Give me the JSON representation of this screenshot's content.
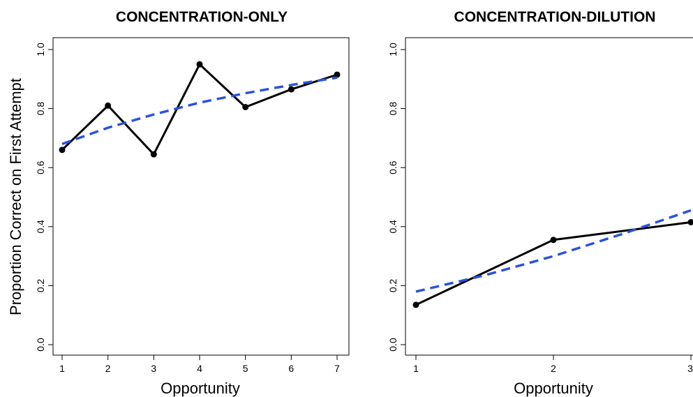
{
  "chart_data": [
    {
      "type": "line",
      "title": "CONCENTRATION-ONLY",
      "xlabel": "Opportunity",
      "ylabel": "Proportion Correct on First Attempt",
      "xlim": [
        1,
        7
      ],
      "ylim": [
        0,
        1
      ],
      "x_ticks": [
        "1",
        "2",
        "3",
        "4",
        "5",
        "6",
        "7"
      ],
      "y_ticks": [
        "0.0",
        "0.2",
        "0.4",
        "0.6",
        "0.8",
        "1.0"
      ],
      "grid": false,
      "legend": "none",
      "series": [
        {
          "style": "solid-with-points",
          "color": "#000000",
          "x": [
            1,
            2,
            3,
            4,
            5,
            6,
            7
          ],
          "y": [
            0.66,
            0.81,
            0.645,
            0.95,
            0.805,
            0.865,
            0.915
          ]
        },
        {
          "style": "dashed",
          "color": "#2a52e0",
          "x": [
            1,
            2,
            3,
            4,
            5,
            6,
            7
          ],
          "y": [
            0.68,
            0.735,
            0.78,
            0.82,
            0.852,
            0.88,
            0.905
          ]
        }
      ]
    },
    {
      "type": "line",
      "title": "CONCENTRATION-DILUTION",
      "xlabel": "Opportunity",
      "ylabel": "",
      "xlim": [
        1,
        3
      ],
      "ylim": [
        0,
        1
      ],
      "x_ticks": [
        "1",
        "2",
        "3"
      ],
      "y_ticks": [
        "0.0",
        "0.2",
        "0.4",
        "0.6",
        "0.8",
        "1.0"
      ],
      "grid": false,
      "legend": "none",
      "series": [
        {
          "style": "solid-with-points",
          "color": "#000000",
          "x": [
            1,
            2,
            3
          ],
          "y": [
            0.135,
            0.355,
            0.415
          ]
        },
        {
          "style": "dashed",
          "color": "#2a52e0",
          "x": [
            1,
            1.5,
            2,
            2.5,
            3
          ],
          "y": [
            0.18,
            0.235,
            0.3,
            0.375,
            0.455
          ]
        }
      ]
    }
  ]
}
